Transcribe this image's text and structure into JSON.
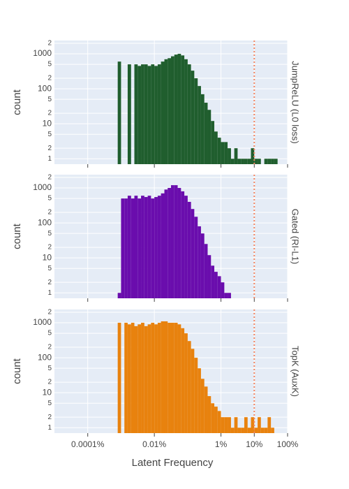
{
  "chart_data": {
    "type": "histogram",
    "xlabel": "Latent Frequency",
    "ylabel": "count",
    "log_x": true,
    "log_y": true,
    "grid": true,
    "xlim": [
      1e-05,
      100
    ],
    "xticks": [
      {
        "value": 0.0001,
        "label": "0.0001%"
      },
      {
        "value": 0.01,
        "label": "0.01%"
      },
      {
        "value": 1,
        "label": "1%"
      },
      {
        "value": 10,
        "label": "10%"
      },
      {
        "value": 100,
        "label": "100%"
      }
    ],
    "ylim": [
      0.7,
      2400
    ],
    "yticks": [
      1,
      2,
      5,
      10,
      {
        "value": 20,
        "label": "2"
      },
      {
        "value": 50,
        "label": "5"
      },
      100,
      {
        "value": 200,
        "label": "2"
      },
      {
        "value": 500,
        "label": "5"
      },
      1000,
      {
        "value": 2000,
        "label": "2"
      }
    ],
    "vline": {
      "value": 10,
      "color": "#f4845f"
    },
    "bins": [
      0.000794,
      0.001,
      0.00126,
      0.00158,
      0.002,
      0.00251,
      0.00316,
      0.00398,
      0.00501,
      0.00631,
      0.00794,
      0.01,
      0.0126,
      0.0158,
      0.02,
      0.0251,
      0.0316,
      0.0398,
      0.0501,
      0.0631,
      0.0794,
      0.1,
      0.126,
      0.158,
      0.2,
      0.251,
      0.316,
      0.398,
      0.501,
      0.631,
      0.794,
      1,
      1.26,
      1.58,
      2,
      2.51,
      3.16,
      3.98,
      5.01,
      6.31,
      7.94,
      10,
      12.6,
      15.8,
      20,
      25.1,
      31.6,
      39.8,
      50.1,
      63.1,
      79.4
    ],
    "series": [
      {
        "name": "JumpReLU (L0 loss)",
        "color": "#205e2e",
        "values": [
          600,
          0,
          0,
          500,
          0,
          500,
          450,
          500,
          500,
          450,
          500,
          450,
          500,
          600,
          700,
          750,
          850,
          950,
          1000,
          900,
          700,
          500,
          330,
          200,
          120,
          70,
          40,
          25,
          12,
          6,
          4,
          3,
          3,
          2,
          1,
          2,
          1,
          1,
          1,
          1,
          2,
          1,
          1,
          0,
          1,
          1,
          1,
          1,
          0,
          0
        ]
      },
      {
        "name": "Gated (RI-L1)",
        "color": "#6a0dad",
        "values": [
          1,
          500,
          500,
          600,
          500,
          600,
          500,
          600,
          550,
          600,
          500,
          550,
          600,
          700,
          900,
          1000,
          1200,
          1200,
          1000,
          800,
          600,
          400,
          250,
          150,
          80,
          50,
          25,
          12,
          6,
          4,
          3,
          2,
          1,
          1,
          0,
          0,
          0,
          0,
          0,
          0,
          0,
          0,
          0,
          0,
          0,
          0,
          0,
          0,
          0,
          0
        ]
      },
      {
        "name": "TopK (AuxK)",
        "color": "#e8820e",
        "values": [
          1000,
          0,
          1000,
          900,
          1000,
          800,
          900,
          1000,
          800,
          900,
          1000,
          900,
          1000,
          1100,
          1100,
          1000,
          1000,
          1000,
          900,
          700,
          500,
          300,
          180,
          100,
          50,
          25,
          15,
          8,
          5,
          4,
          3,
          2,
          2,
          2,
          1,
          2,
          1,
          1,
          2,
          1,
          2,
          1,
          2,
          1,
          1,
          2,
          1,
          0,
          0,
          0
        ]
      }
    ]
  }
}
